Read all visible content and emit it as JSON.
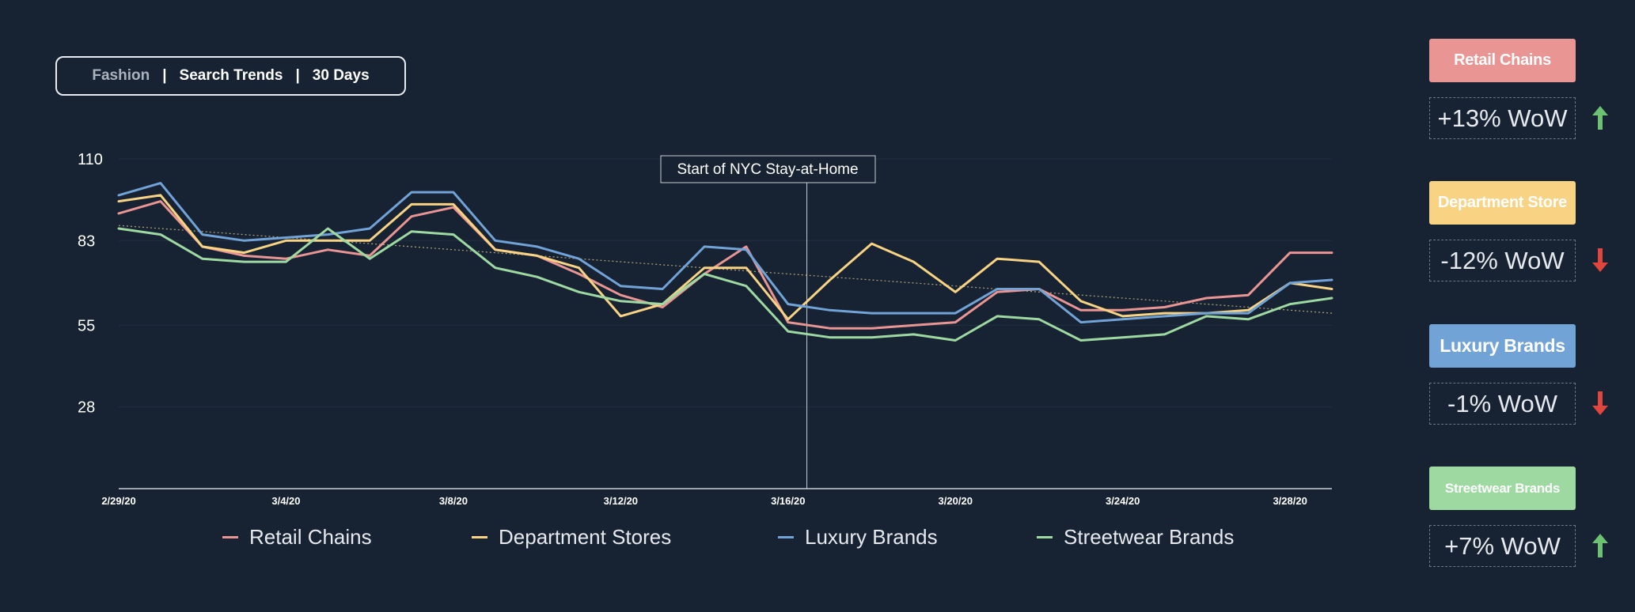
{
  "header": {
    "category": "Fashion",
    "separator": "|",
    "topic": "Search Trends",
    "period": "30 Days"
  },
  "annotation": {
    "label": "Start of NYC Stay-at-Home",
    "date_index": 17
  },
  "chart_data": {
    "type": "line",
    "x_tick_labels": [
      "2/29/20",
      "3/4/20",
      "3/8/20",
      "3/12/20",
      "3/16/20",
      "3/20/20",
      "3/24/20",
      "3/28/20"
    ],
    "x_tick_indices": [
      0,
      4,
      8,
      12,
      16,
      20,
      24,
      28
    ],
    "x_count": 30,
    "ylim": [
      1,
      110
    ],
    "y_ticks": [
      28,
      55,
      83,
      110
    ],
    "grid": true,
    "legend_position": "bottom",
    "series": [
      {
        "name": "Retail Chains",
        "color": "#e99593",
        "values": [
          92,
          96,
          81,
          78,
          77,
          80,
          78,
          91,
          94,
          80,
          78,
          72,
          65,
          61,
          72,
          81,
          56,
          54,
          54,
          55,
          56,
          66,
          67,
          60,
          60,
          61,
          64,
          65,
          79,
          79
        ]
      },
      {
        "name": "Department Stores",
        "color": "#f7d383",
        "values": [
          96,
          98,
          81,
          79,
          83,
          83,
          83,
          95,
          95,
          80,
          78,
          74,
          58,
          62,
          74,
          74,
          57,
          70,
          82,
          76,
          66,
          77,
          76,
          63,
          58,
          59,
          59,
          60,
          69,
          67
        ]
      },
      {
        "name": "Luxury Brands",
        "color": "#72a3d7",
        "values": [
          98,
          102,
          85,
          83,
          84,
          85,
          87,
          99,
          99,
          83,
          81,
          77,
          68,
          67,
          81,
          80,
          62,
          60,
          59,
          59,
          59,
          67,
          67,
          56,
          57,
          58,
          59,
          59,
          69,
          70
        ]
      },
      {
        "name": "Streetwear Brands",
        "color": "#9fd9a2",
        "values": [
          87,
          85,
          77,
          76,
          76,
          87,
          77,
          86,
          85,
          74,
          71,
          66,
          63,
          62,
          72,
          68,
          53,
          51,
          51,
          52,
          50,
          58,
          57,
          50,
          51,
          52,
          58,
          57,
          62,
          64
        ]
      }
    ],
    "trendline": {
      "color": "#d9c58a",
      "start": 88,
      "end": 59
    }
  },
  "side_panel": [
    {
      "label": "Retail Chains",
      "value": "+13% WoW",
      "direction": "up",
      "color": "#e99593"
    },
    {
      "label": "Department Store",
      "value": "-12% WoW",
      "direction": "down",
      "color": "#f7d383"
    },
    {
      "label": "Luxury Brands",
      "value": "-1% WoW",
      "direction": "down",
      "color": "#72a3d7"
    },
    {
      "label": "Streetwear Brands",
      "value": "+7% WoW",
      "direction": "up",
      "color": "#9fd9a2"
    }
  ],
  "arrow_colors": {
    "up": "#6cc270",
    "down": "#e0463d"
  }
}
